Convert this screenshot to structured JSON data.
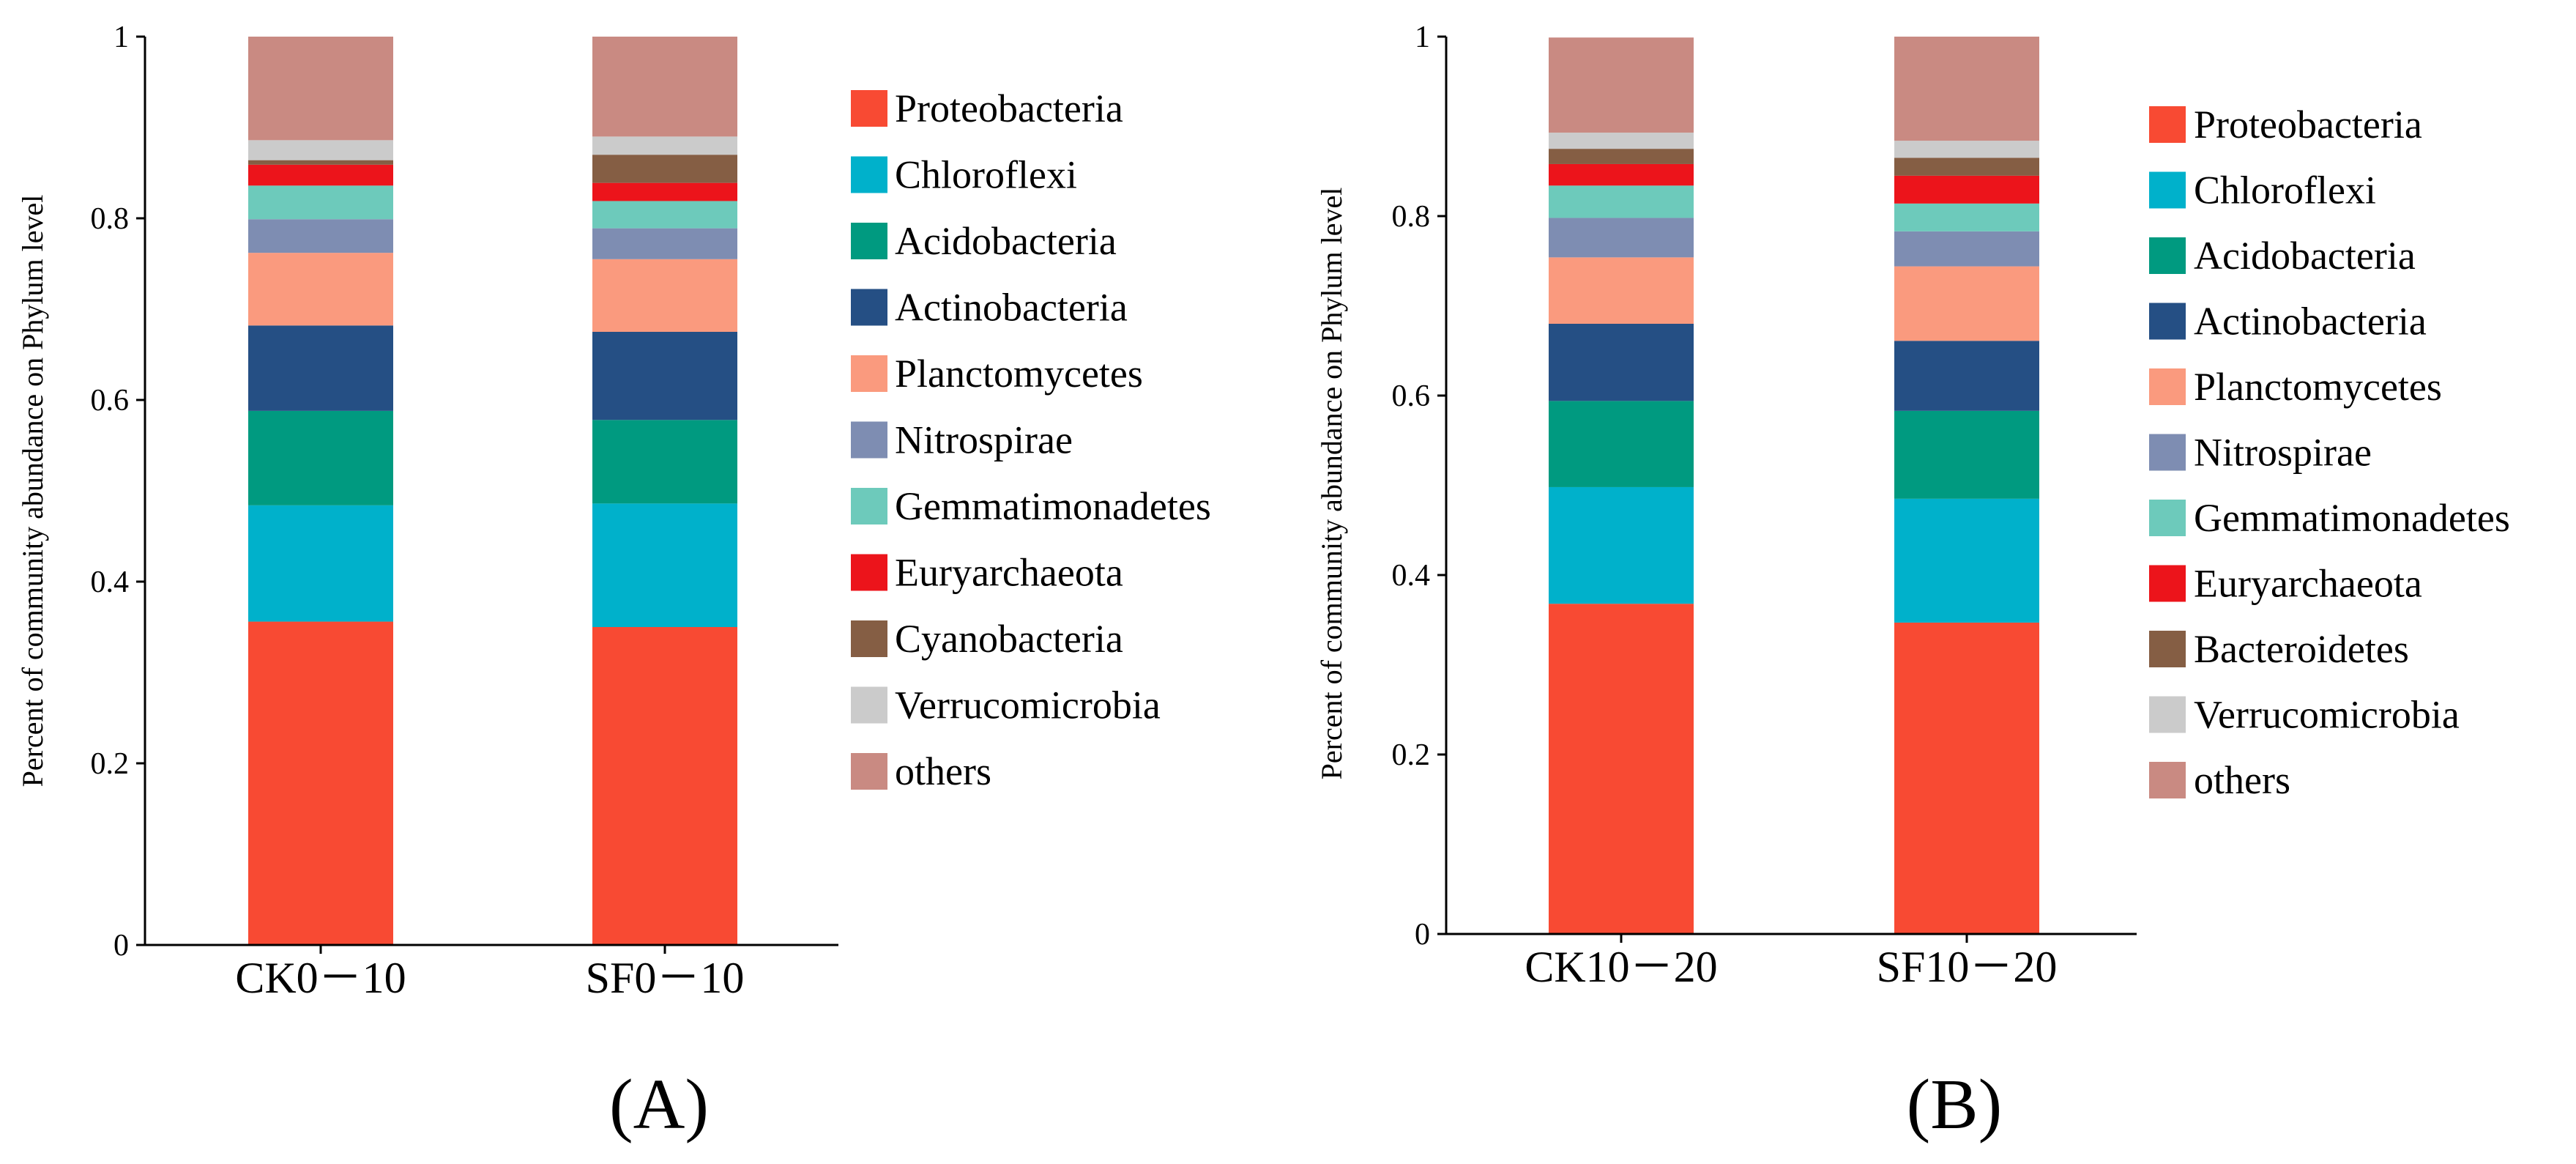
{
  "colors": {
    "Proteobacteria": "#F84A33",
    "Chloroflexi": "#00B1CB",
    "Acidobacteria": "#009A80",
    "Actinobacteria": "#254F84",
    "Planctomycetes": "#FA9A7E",
    "Nitrospirae": "#7E8DB2",
    "Gemmatimonadetes": "#6DCABB",
    "Euryarchaeota": "#EC141B",
    "Cyanobacteria": "#855E44",
    "Bacteroidetes": "#855E44",
    "Verrucomicrobia": "#CBCBCB",
    "others": "#C98A82"
  },
  "chart_data": [
    {
      "type": "bar",
      "stacked": true,
      "panel_label": "(A)",
      "ylabel": "Percent of community abundance on Phylum level",
      "xlabel": "",
      "ylim": [
        0,
        1
      ],
      "yticks": [
        0,
        0.2,
        0.4,
        0.6,
        0.8,
        1
      ],
      "ytick_labels": [
        "0",
        "0.2",
        "0.4",
        "0.6",
        "0.8",
        "1"
      ],
      "categories": [
        "CK0－10",
        "SF0－10"
      ],
      "legend_position": "right",
      "series": [
        {
          "name": "Proteobacteria",
          "values": [
            0.356,
            0.35
          ]
        },
        {
          "name": "Chloroflexi",
          "values": [
            0.128,
            0.136
          ]
        },
        {
          "name": "Acidobacteria",
          "values": [
            0.104,
            0.092
          ]
        },
        {
          "name": "Actinobacteria",
          "values": [
            0.094,
            0.097
          ]
        },
        {
          "name": "Planctomycetes",
          "values": [
            0.08,
            0.08
          ]
        },
        {
          "name": "Nitrospirae",
          "values": [
            0.037,
            0.034
          ]
        },
        {
          "name": "Gemmatimonadetes",
          "values": [
            0.037,
            0.03
          ]
        },
        {
          "name": "Euryarchaeota",
          "values": [
            0.023,
            0.02
          ]
        },
        {
          "name": "Cyanobacteria",
          "values": [
            0.005,
            0.031
          ]
        },
        {
          "name": "Verrucomicrobia",
          "values": [
            0.022,
            0.02
          ]
        },
        {
          "name": "others",
          "values": [
            0.114,
            0.11
          ]
        }
      ]
    },
    {
      "type": "bar",
      "stacked": true,
      "panel_label": "(B)",
      "ylabel": "Percent of community abundance on Phylum level",
      "xlabel": "",
      "ylim": [
        0,
        1
      ],
      "yticks": [
        0,
        0.2,
        0.4,
        0.6,
        0.8,
        1
      ],
      "ytick_labels": [
        "0",
        "0.2",
        "0.4",
        "0.6",
        "0.8",
        "1"
      ],
      "categories": [
        "CK10－20",
        "SF10－20"
      ],
      "legend_position": "right",
      "series": [
        {
          "name": "Proteobacteria",
          "values": [
            0.368,
            0.347
          ]
        },
        {
          "name": "Chloroflexi",
          "values": [
            0.13,
            0.138
          ]
        },
        {
          "name": "Acidobacteria",
          "values": [
            0.096,
            0.098
          ]
        },
        {
          "name": "Actinobacteria",
          "values": [
            0.086,
            0.078
          ]
        },
        {
          "name": "Planctomycetes",
          "values": [
            0.074,
            0.083
          ]
        },
        {
          "name": "Nitrospirae",
          "values": [
            0.044,
            0.039
          ]
        },
        {
          "name": "Gemmatimonadetes",
          "values": [
            0.036,
            0.031
          ]
        },
        {
          "name": "Euryarchaeota",
          "values": [
            0.024,
            0.031
          ]
        },
        {
          "name": "Bacteroidetes",
          "values": [
            0.017,
            0.02
          ]
        },
        {
          "name": "Verrucomicrobia",
          "values": [
            0.018,
            0.019
          ]
        },
        {
          "name": "others",
          "values": [
            0.106,
            0.116
          ]
        }
      ]
    }
  ]
}
